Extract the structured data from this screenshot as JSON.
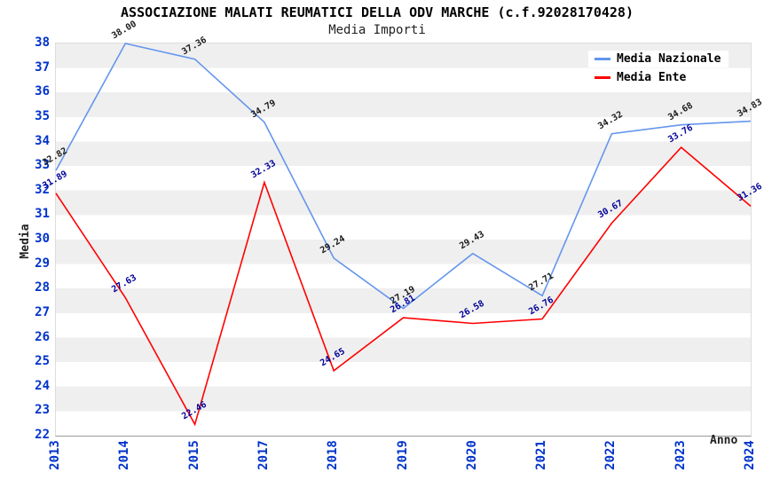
{
  "title": "ASSOCIAZIONE MALATI REUMATICI DELLA ODV MARCHE (c.f.92028170428)",
  "subtitle": "Media Importi",
  "chart_data": {
    "type": "line",
    "categories": [
      "2013",
      "2014",
      "2015",
      "2017",
      "2018",
      "2019",
      "2020",
      "2021",
      "2022",
      "2023",
      "2024"
    ],
    "series": [
      {
        "name": "Media Nazionale",
        "color": "#6495ED",
        "label_color": "#1a1a1a",
        "values": [
          32.82,
          38.0,
          37.36,
          34.79,
          29.24,
          27.19,
          29.43,
          27.71,
          34.32,
          34.68,
          34.83
        ]
      },
      {
        "name": "Media Ente",
        "color": "#FF0000",
        "label_color": "#000099",
        "values": [
          31.89,
          27.63,
          22.46,
          32.33,
          24.65,
          26.81,
          26.58,
          26.76,
          30.67,
          33.76,
          31.36
        ]
      }
    ],
    "xlabel": "Anno",
    "ylabel": "Media",
    "ylim": [
      22,
      38
    ],
    "ytick_step": 1,
    "grid": "horizontal-stripes",
    "stripe_colors": [
      "#EFEFEF",
      "#FFFFFF"
    ],
    "legend_position": "top-right",
    "value_label_format": "2-decimals"
  },
  "colors": {
    "tick_label": "#0033CC",
    "axis_title": "#222222",
    "title_text": "#000000",
    "plot_border": "#DDDDDD",
    "x_axis_line": "#999999"
  }
}
